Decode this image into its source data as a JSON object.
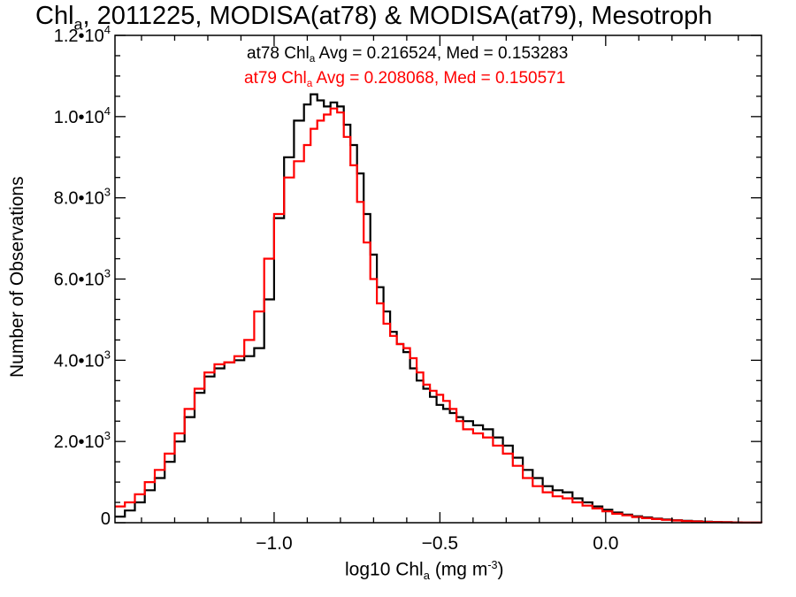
{
  "chart_data": {
    "type": "line",
    "title": {
      "prefix": "Chl",
      "sub": "a",
      "rest": ", 2011225, MODISA(at78) & MODISA(at79), Mesotroph"
    },
    "xlabel": {
      "prefix": "log10 Chl",
      "sub": "a",
      "mid": " (mg m",
      "sup": "-3",
      "end": ")"
    },
    "ylabel": "Number of Observations",
    "xlim": [
      -1.48,
      0.47
    ],
    "ylim": [
      0,
      12000
    ],
    "x_ticks": [
      {
        "value": -1.0,
        "label": "−1.0"
      },
      {
        "value": -0.5,
        "label": "−0.5"
      },
      {
        "value": 0.0,
        "label": "0.0"
      }
    ],
    "y_ticks": [
      {
        "value": 0,
        "mant": "0",
        "exp": ""
      },
      {
        "value": 2000,
        "mant": "2.0•10",
        "exp": "3"
      },
      {
        "value": 4000,
        "mant": "4.0•10",
        "exp": "3"
      },
      {
        "value": 6000,
        "mant": "6.0•10",
        "exp": "3"
      },
      {
        "value": 8000,
        "mant": "8.0•10",
        "exp": "3"
      },
      {
        "value": 10000,
        "mant": "1.0•10",
        "exp": "4"
      },
      {
        "value": 12000,
        "mant": "1.2•10",
        "exp": "4"
      }
    ],
    "legend": [
      {
        "pre": "at78 Chl",
        "sub": "a",
        "post": " Avg = 0.216524, Med = 0.153283",
        "color": "#000000"
      },
      {
        "pre": "at79 Chl",
        "sub": "a",
        "post": " Avg = 0.208068, Med = 0.150571",
        "color": "#ff0000"
      }
    ],
    "series": [
      {
        "name": "at78",
        "color": "#000000",
        "x": [
          -1.48,
          -1.45,
          -1.42,
          -1.39,
          -1.36,
          -1.33,
          -1.3,
          -1.27,
          -1.24,
          -1.21,
          -1.18,
          -1.15,
          -1.12,
          -1.09,
          -1.06,
          -1.03,
          -1.0,
          -0.97,
          -0.94,
          -0.91,
          -0.89,
          -0.87,
          -0.85,
          -0.83,
          -0.81,
          -0.79,
          -0.77,
          -0.75,
          -0.73,
          -0.71,
          -0.69,
          -0.67,
          -0.65,
          -0.63,
          -0.61,
          -0.59,
          -0.57,
          -0.55,
          -0.53,
          -0.51,
          -0.49,
          -0.47,
          -0.45,
          -0.43,
          -0.4,
          -0.37,
          -0.34,
          -0.31,
          -0.28,
          -0.25,
          -0.22,
          -0.19,
          -0.16,
          -0.13,
          -0.1,
          -0.07,
          -0.04,
          -0.01,
          0.02,
          0.05,
          0.08,
          0.11,
          0.14,
          0.17,
          0.2,
          0.23,
          0.26,
          0.29,
          0.32,
          0.35,
          0.38,
          0.41,
          0.44,
          0.47
        ],
        "y": [
          150,
          300,
          500,
          800,
          1100,
          1500,
          2000,
          2600,
          3200,
          3600,
          3800,
          3950,
          4000,
          4100,
          4300,
          5500,
          7500,
          9000,
          9900,
          10300,
          10550,
          10400,
          10250,
          10350,
          10250,
          9800,
          9300,
          8600,
          7600,
          6600,
          5800,
          5200,
          4700,
          4400,
          4200,
          3800,
          3500,
          3300,
          3100,
          2900,
          2800,
          2700,
          2600,
          2500,
          2400,
          2300,
          2100,
          1900,
          1600,
          1300,
          1100,
          900,
          800,
          750,
          600,
          500,
          400,
          320,
          250,
          200,
          160,
          130,
          100,
          80,
          60,
          45,
          35,
          25,
          18,
          12,
          8,
          5,
          3,
          2
        ]
      },
      {
        "name": "at79",
        "color": "#ff0000",
        "x": [
          -1.48,
          -1.45,
          -1.42,
          -1.39,
          -1.36,
          -1.33,
          -1.3,
          -1.27,
          -1.24,
          -1.21,
          -1.18,
          -1.15,
          -1.12,
          -1.09,
          -1.06,
          -1.03,
          -1.0,
          -0.97,
          -0.94,
          -0.91,
          -0.89,
          -0.87,
          -0.85,
          -0.83,
          -0.81,
          -0.79,
          -0.77,
          -0.75,
          -0.73,
          -0.71,
          -0.69,
          -0.67,
          -0.65,
          -0.63,
          -0.61,
          -0.59,
          -0.57,
          -0.55,
          -0.53,
          -0.51,
          -0.49,
          -0.47,
          -0.45,
          -0.43,
          -0.4,
          -0.37,
          -0.34,
          -0.31,
          -0.28,
          -0.25,
          -0.22,
          -0.19,
          -0.16,
          -0.13,
          -0.1,
          -0.07,
          -0.04,
          -0.01,
          0.02,
          0.05,
          0.08,
          0.11,
          0.14,
          0.17,
          0.2,
          0.23,
          0.26,
          0.29,
          0.32,
          0.35,
          0.38,
          0.41,
          0.44,
          0.47
        ],
        "y": [
          400,
          500,
          700,
          1000,
          1300,
          1700,
          2200,
          2800,
          3300,
          3700,
          3900,
          3950,
          4100,
          4500,
          5200,
          6500,
          7600,
          8500,
          8900,
          9300,
          9700,
          9900,
          10050,
          10200,
          10100,
          9500,
          8800,
          7900,
          6900,
          6000,
          5400,
          4900,
          4600,
          4400,
          4300,
          4050,
          3700,
          3400,
          3250,
          3150,
          3000,
          2800,
          2500,
          2300,
          2200,
          2100,
          1900,
          1700,
          1400,
          1100,
          900,
          750,
          650,
          600,
          500,
          420,
          350,
          280,
          220,
          180,
          140,
          110,
          90,
          70,
          55,
          40,
          30,
          20,
          14,
          10,
          7,
          4,
          2,
          1
        ]
      }
    ]
  }
}
